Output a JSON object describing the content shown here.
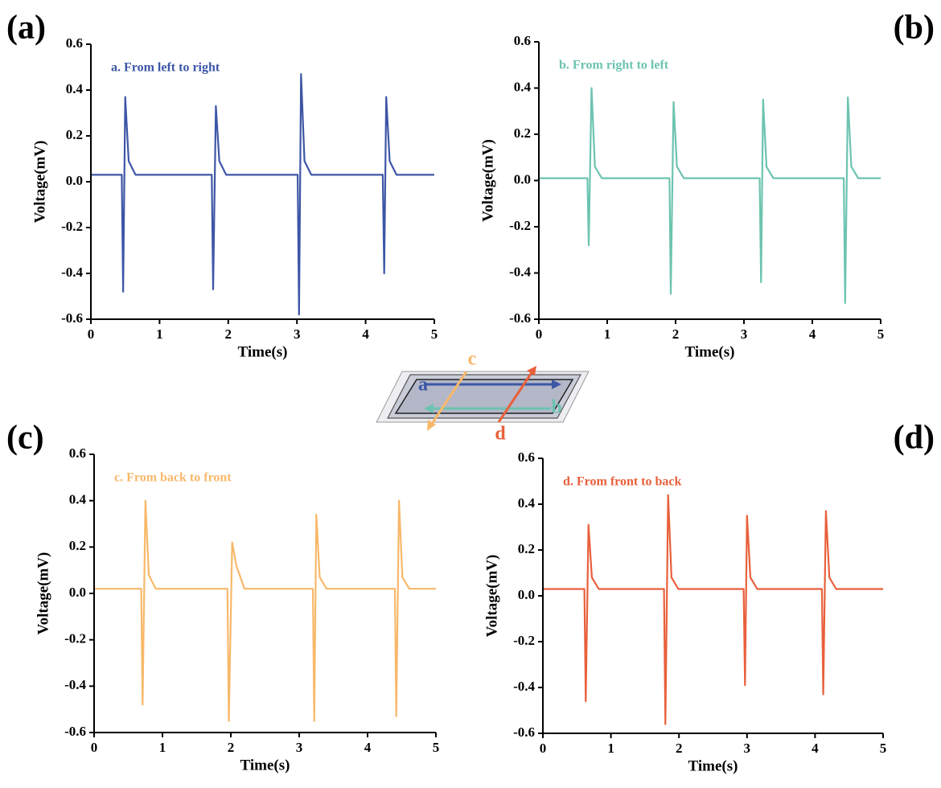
{
  "chart_data": [
    {
      "type": "line",
      "panel_label": "(a)",
      "xlabel": "Time(s)",
      "ylabel": "Voltage(mV)",
      "xlim": [
        0,
        5
      ],
      "ylim": [
        -0.6,
        0.6
      ],
      "xticks": [
        0,
        1,
        2,
        3,
        4,
        5
      ],
      "yticks": [
        -0.6,
        -0.4,
        -0.2,
        {
          "value": 0,
          "label": "0.0"
        },
        0.2,
        0.4,
        0.6
      ],
      "x": [
        0,
        0.45,
        0.47,
        0.5,
        0.55,
        0.65,
        1.76,
        1.78,
        1.82,
        1.87,
        1.97,
        3.01,
        3.03,
        3.06,
        3.11,
        3.21,
        4.25,
        4.27,
        4.3,
        4.35,
        4.45,
        5
      ],
      "series": [
        {
          "name": "a. From left to right",
          "color": "#3d56a6",
          "values": [
            0.03,
            0.03,
            -0.48,
            0.37,
            0.09,
            0.03,
            0.03,
            -0.47,
            0.33,
            0.09,
            0.03,
            0.03,
            -0.58,
            0.47,
            0.09,
            0.03,
            0.03,
            -0.4,
            0.37,
            0.09,
            0.03,
            0.03
          ]
        }
      ]
    },
    {
      "type": "line",
      "panel_label": "(b)",
      "xlabel": "Time(s)",
      "ylabel": "Voltage(mV)",
      "xlim": [
        0,
        5
      ],
      "ylim": [
        -0.6,
        0.6
      ],
      "xticks": [
        0,
        1,
        2,
        3,
        4,
        5
      ],
      "yticks": [
        -0.6,
        -0.4,
        -0.2,
        {
          "value": 0,
          "label": "0.0"
        },
        0.2,
        0.4,
        0.6
      ],
      "x": [
        0,
        0.71,
        0.73,
        0.77,
        0.82,
        0.92,
        1.91,
        1.93,
        1.97,
        2.02,
        2.12,
        3.23,
        3.25,
        3.28,
        3.33,
        3.43,
        4.46,
        4.48,
        4.52,
        4.57,
        4.67,
        5
      ],
      "series": [
        {
          "name": "b. From right to left",
          "color": "#6cc3b0",
          "values": [
            0.01,
            0.01,
            -0.28,
            0.4,
            0.06,
            0.01,
            0.01,
            -0.49,
            0.34,
            0.06,
            0.01,
            0.01,
            -0.44,
            0.35,
            0.06,
            0.01,
            0.01,
            -0.53,
            0.36,
            0.06,
            0.01,
            0.01
          ]
        }
      ]
    },
    {
      "type": "line",
      "panel_label": "(c)",
      "xlabel": "Time(s)",
      "ylabel": "Voltage(mV)",
      "xlim": [
        0,
        5
      ],
      "ylim": [
        -0.6,
        0.6
      ],
      "xticks": [
        0,
        1,
        2,
        3,
        4,
        5
      ],
      "yticks": [
        -0.6,
        -0.4,
        -0.2,
        {
          "value": 0,
          "label": "0.0"
        },
        0.2,
        0.4,
        0.6
      ],
      "x": [
        0,
        0.69,
        0.71,
        0.75,
        0.8,
        0.9,
        1.95,
        1.97,
        2.02,
        2.08,
        2.2,
        3.2,
        3.22,
        3.25,
        3.3,
        3.4,
        4.4,
        4.42,
        4.46,
        4.51,
        4.61,
        5
      ],
      "series": [
        {
          "name": "c. From back to front",
          "color": "#f8b86a",
          "values": [
            0.02,
            0.02,
            -0.48,
            0.4,
            0.08,
            0.02,
            0.02,
            -0.55,
            0.22,
            0.12,
            0.02,
            0.02,
            -0.55,
            0.34,
            0.07,
            0.02,
            0.02,
            -0.53,
            0.4,
            0.07,
            0.02,
            0.02
          ]
        }
      ]
    },
    {
      "type": "line",
      "panel_label": "(d)",
      "xlabel": "Time(s)",
      "ylabel": "Voltage(mV)",
      "xlim": [
        0,
        5
      ],
      "ylim": [
        -0.6,
        0.6
      ],
      "xticks": [
        0,
        1,
        2,
        3,
        4,
        5
      ],
      "yticks": [
        -0.6,
        -0.4,
        -0.2,
        {
          "value": 0,
          "label": "0.0"
        },
        0.2,
        0.4,
        0.6
      ],
      "x": [
        0,
        0.61,
        0.63,
        0.67,
        0.72,
        0.82,
        1.78,
        1.8,
        1.84,
        1.89,
        1.99,
        2.95,
        2.97,
        3.0,
        3.05,
        3.15,
        4.1,
        4.12,
        4.16,
        4.21,
        4.31,
        5
      ],
      "series": [
        {
          "name": "d. From front to back",
          "color": "#e8603b",
          "values": [
            0.03,
            0.03,
            -0.46,
            0.31,
            0.08,
            0.03,
            0.03,
            -0.56,
            0.44,
            0.08,
            0.03,
            0.03,
            -0.39,
            0.35,
            0.08,
            0.03,
            0.03,
            -0.43,
            0.37,
            0.08,
            0.03,
            0.03
          ]
        }
      ]
    }
  ],
  "diagram": {
    "labels": [
      "a",
      "b",
      "c",
      "d"
    ]
  }
}
